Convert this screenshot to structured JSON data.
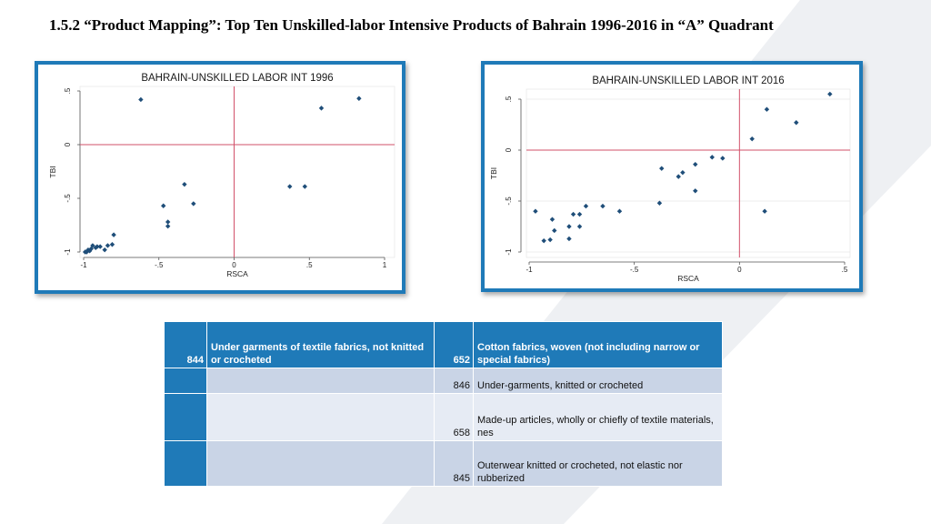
{
  "slide": {
    "title": "1.5.2 “Product Mapping”: Top Ten Unskilled-labor Intensive Products of Bahrain 1996-2016 in “A” Quadrant"
  },
  "colors": {
    "frame": "#1f7ab8",
    "marker": "#1f4e79",
    "reference_line": "#d2506a",
    "table_header": "#1f7ab8",
    "table_row_dark": "#c9d4e6",
    "table_row_light": "#e6ebf4"
  },
  "chart_data": [
    {
      "type": "scatter",
      "title": "BAHRAIN-UNSKILLED LABOR INT 1996",
      "xlabel": "RSCA",
      "ylabel": "TBI",
      "xlim": [
        -1,
        1
      ],
      "ylim": [
        -1,
        0.5
      ],
      "xticks": [
        -1,
        -0.5,
        0,
        0.5,
        1
      ],
      "xtick_labels": [
        "-1",
        "-.5",
        "0",
        ".5",
        "1"
      ],
      "yticks": [
        -1,
        -0.5,
        0,
        0.5
      ],
      "ytick_labels": [
        "-1",
        "-.5",
        "0",
        ".5"
      ],
      "reference_lines": {
        "x": 0,
        "y": 0
      },
      "grid": false,
      "points": [
        [
          -0.62,
          0.42
        ],
        [
          0.58,
          0.34
        ],
        [
          0.83,
          0.43
        ],
        [
          -0.33,
          -0.37
        ],
        [
          -0.27,
          -0.55
        ],
        [
          -0.47,
          -0.57
        ],
        [
          -0.44,
          -0.72
        ],
        [
          -0.44,
          -0.76
        ],
        [
          0.37,
          -0.39
        ],
        [
          0.47,
          -0.39
        ],
        [
          -0.8,
          -0.84
        ],
        [
          -0.81,
          -0.93
        ],
        [
          -0.84,
          -0.94
        ],
        [
          -0.86,
          -0.98
        ],
        [
          -0.89,
          -0.95
        ],
        [
          -0.91,
          -0.95
        ],
        [
          -0.92,
          -0.96
        ],
        [
          -0.94,
          -0.94
        ],
        [
          -0.95,
          -0.97
        ],
        [
          -0.96,
          -0.99
        ],
        [
          -0.97,
          -0.98
        ],
        [
          -0.98,
          -1.0
        ],
        [
          -0.99,
          -1.0
        ]
      ]
    },
    {
      "type": "scatter",
      "title": "BAHRAIN-UNSKILLED LABOR INT 2016",
      "xlabel": "RSCA",
      "ylabel": "TBI",
      "xlim": [
        -1,
        0.5
      ],
      "ylim": [
        -1,
        0.5
      ],
      "xticks": [
        -1,
        -0.5,
        0,
        0.5
      ],
      "xtick_labels": [
        "-1",
        "-.5",
        "0",
        ".5"
      ],
      "yticks": [
        -1,
        -0.5,
        0,
        0.5
      ],
      "ytick_labels": [
        "-1",
        "-.5",
        "0",
        ".5"
      ],
      "reference_lines": {
        "x": 0,
        "y": 0
      },
      "grid": true,
      "points": [
        [
          0.43,
          0.55
        ],
        [
          0.13,
          0.4
        ],
        [
          0.27,
          0.27
        ],
        [
          0.06,
          0.11
        ],
        [
          -0.13,
          -0.07
        ],
        [
          -0.08,
          -0.08
        ],
        [
          -0.21,
          -0.14
        ],
        [
          -0.27,
          -0.22
        ],
        [
          -0.29,
          -0.26
        ],
        [
          -0.21,
          -0.4
        ],
        [
          -0.37,
          -0.18
        ],
        [
          -0.38,
          -0.52
        ],
        [
          -0.57,
          -0.6
        ],
        [
          -0.65,
          -0.55
        ],
        [
          -0.73,
          -0.55
        ],
        [
          -0.76,
          -0.63
        ],
        [
          -0.79,
          -0.63
        ],
        [
          -0.76,
          -0.75
        ],
        [
          -0.81,
          -0.75
        ],
        [
          -0.81,
          -0.87
        ],
        [
          -0.88,
          -0.79
        ],
        [
          -0.89,
          -0.68
        ],
        [
          -0.9,
          -0.88
        ],
        [
          -0.93,
          -0.89
        ],
        [
          -0.97,
          -0.6
        ],
        [
          0.12,
          -0.6
        ]
      ]
    }
  ],
  "table": {
    "rows": [
      {
        "code1": "844",
        "desc1": "Under garments of textile fabrics, not knitted or crocheted",
        "code2": "652",
        "desc2": "Cotton fabrics, woven (not including narrow or special fabrics)"
      },
      {
        "code1": "",
        "desc1": "",
        "code2": "846",
        "desc2": "Under-garments, knitted or crocheted"
      },
      {
        "code1": "",
        "desc1": "",
        "code2": "658",
        "desc2": "Made-up articles, wholly or chiefly of textile materials, nes"
      },
      {
        "code1": "",
        "desc1": "",
        "code2": "845",
        "desc2": "Outerwear knitted or crocheted, not elastic nor rubberized"
      }
    ]
  }
}
